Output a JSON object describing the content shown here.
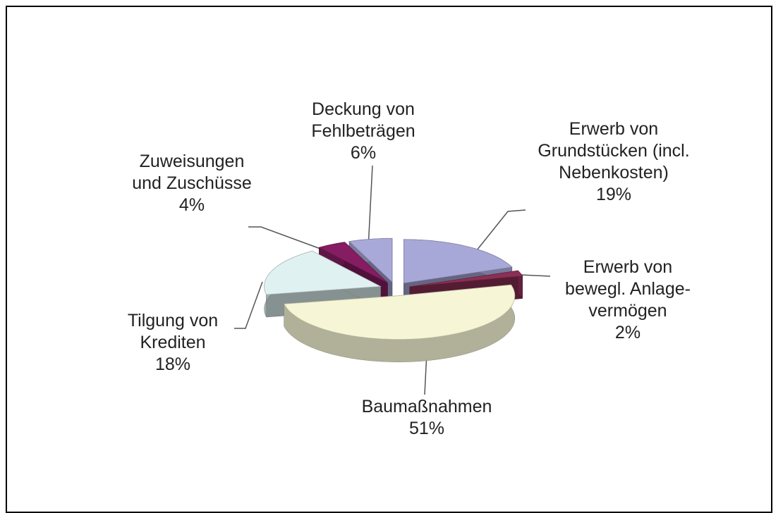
{
  "chart_data": {
    "type": "pie",
    "categories": [
      "Erwerb von Grundstücken (incl. Nebenkosten)",
      "Erwerb von bewegl. Anlage-vermögen",
      "Baumaßnahmen",
      "Tilgung von Krediten",
      "Zuweisungen und Zuschüsse",
      "Deckung von Fehlbeträgen"
    ],
    "values": [
      19,
      2,
      51,
      18,
      4,
      6
    ],
    "value_labels": [
      "19%",
      "2%",
      "51%",
      "18%",
      "4%",
      "6%"
    ],
    "colors": [
      "#a8a8d8",
      "#8a2f55",
      "#f6f6d6",
      "#e0f1f1",
      "#861d62",
      "#a9a9d9"
    ]
  }
}
